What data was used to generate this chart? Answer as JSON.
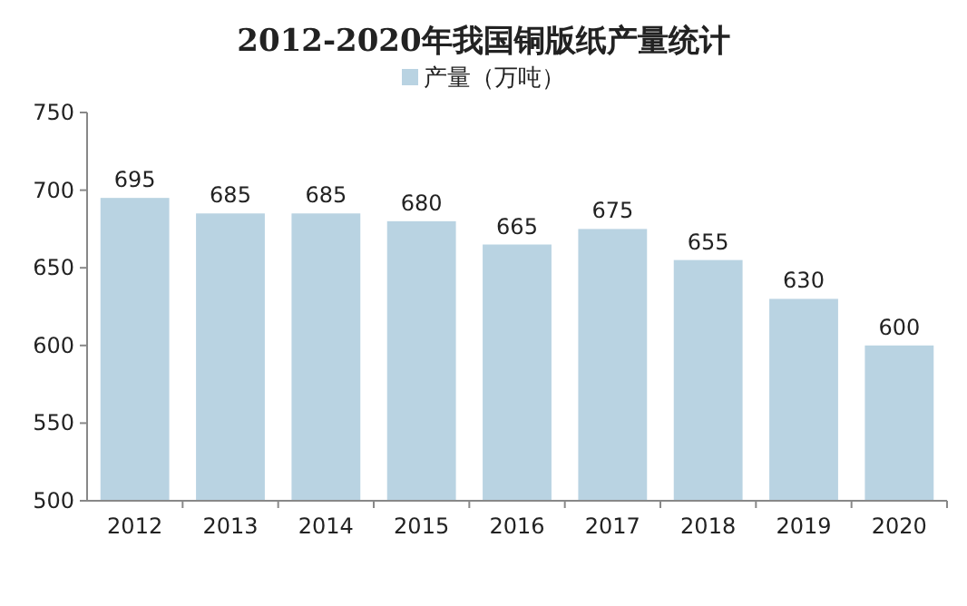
{
  "chart_data": {
    "type": "bar",
    "title": "2012-2020年我国铜版纸产量统计",
    "categories": [
      "2012",
      "2013",
      "2014",
      "2015",
      "2016",
      "2017",
      "2018",
      "2019",
      "2020"
    ],
    "series": [
      {
        "name": "产量（万吨）",
        "color": "#b9d3e2",
        "values": [
          695,
          685,
          685,
          680,
          665,
          675,
          655,
          630,
          600
        ]
      }
    ],
    "ylim": [
      500,
      750
    ],
    "yticks": [
      500,
      550,
      600,
      650,
      700,
      750
    ],
    "data_labels": true,
    "legend": "top",
    "grid": false
  }
}
